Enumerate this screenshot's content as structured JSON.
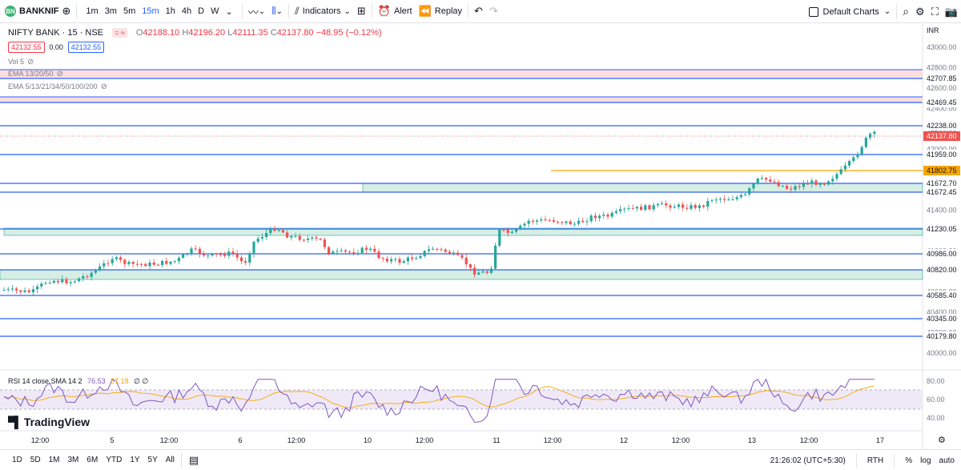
{
  "toolbar": {
    "symbol": "BANKNIF",
    "symbol_icon": "BN",
    "intervals": [
      "1m",
      "3m",
      "5m",
      "15m",
      "1h",
      "4h",
      "D",
      "W"
    ],
    "active_interval": "15m",
    "indicators_label": "Indicators",
    "alert_label": "Alert",
    "replay_label": "Replay",
    "default_charts_label": "Default Charts"
  },
  "legend": {
    "title": "NIFTY BANK · 15 · NSE",
    "o_label": "O",
    "o": "42188.10",
    "h_label": "H",
    "h": "42196.20",
    "l_label": "L",
    "l": "42111.35",
    "c_label": "C",
    "c": "42137.80",
    "change": "−48.95 (−0.12%)",
    "bid": "42132.55",
    "spread": "0.00",
    "ask": "42132.55",
    "vol": "Vol 5",
    "ema1": "EMA 13/20/50",
    "ema2": "EMA 5/13/21/34/50/100/200",
    "rsi": "RSI 14 close SMA 14 2",
    "rsi_v1": "76.53",
    "rsi_v2": "67.18",
    "rsi_v3": "∅ ∅"
  },
  "currency": "INR",
  "price_ticks": [
    "43000.00",
    "42800.00",
    "42600.00",
    "42400.00",
    "42200.00",
    "42000.00",
    "41800.00",
    "41600.00",
    "41400.00",
    "41200.00",
    "41000.00",
    "40800.00",
    "40600.00",
    "40400.00",
    "40200.00",
    "40000.00"
  ],
  "level_labels": [
    "42707.85",
    "42469.45",
    "42238.00",
    "41959.00",
    "41672.70",
    "41672.45",
    "41230.05",
    "40986.00",
    "40820.00",
    "40585.40",
    "40345.00",
    "40179.80"
  ],
  "highlight_labels": [
    "41802.75",
    "42137.80"
  ],
  "rsi_ticks": [
    "80.00",
    "60.00",
    "40.00"
  ],
  "time_labels": [
    "12:00",
    "5",
    "12:00",
    "6",
    "12:00",
    "10",
    "12:00",
    "11",
    "12:00",
    "12",
    "12:00",
    "13",
    "12:00",
    "17"
  ],
  "branding": "TradingView",
  "bottom": {
    "ranges": [
      "1D",
      "5D",
      "1M",
      "3M",
      "6M",
      "YTD",
      "1Y",
      "5Y",
      "All"
    ],
    "clock": "21:26:02 (UTC+5:30)",
    "session": "RTH",
    "percent": "%",
    "log": "log",
    "auto": "auto"
  },
  "colors": {
    "up": "#26a69a",
    "down": "#ef5350",
    "level": "#2962ff",
    "orange": "#f7a600",
    "rsi": "#7e57c2"
  }
}
